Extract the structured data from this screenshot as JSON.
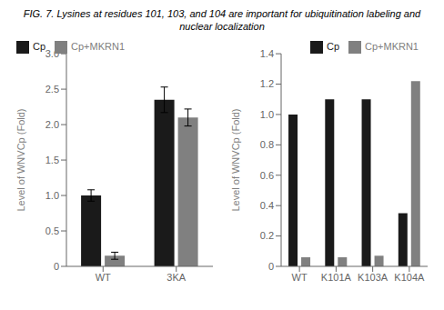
{
  "title": "FIG. 7. Lysines at residues 101, 103, and 104 are important for ubiquitination labeling and nuclear localization",
  "chart_data": [
    {
      "type": "bar",
      "categories": [
        "WT",
        "3KA"
      ],
      "series": [
        {
          "name": "Cp",
          "color": "#1a1a1a",
          "values": [
            1.0,
            2.35
          ],
          "errors": [
            0.08,
            0.18
          ]
        },
        {
          "name": "Cp+MKRN1",
          "color": "#808080",
          "values": [
            0.15,
            2.1
          ],
          "errors": [
            0.05,
            0.12
          ]
        }
      ],
      "y_label": "Level of WNVCp (Fold)",
      "ylim": [
        0,
        3.0
      ],
      "yticks": [
        0,
        0.5,
        {
          "value": 1.0,
          "label": "1.0"
        },
        1.5,
        {
          "value": 2.0,
          "label": "2.0"
        },
        2.5,
        {
          "value": 3.0,
          "label": "3.0"
        }
      ],
      "legend": "upper left",
      "grid": false
    },
    {
      "type": "bar",
      "categories": [
        "WT",
        "K101A",
        "K103A",
        "K104A"
      ],
      "series": [
        {
          "name": "Cp",
          "color": "#1a1a1a",
          "values": [
            1.0,
            1.1,
            1.1,
            0.35
          ]
        },
        {
          "name": "Cp+MKRN1",
          "color": "#808080",
          "values": [
            0.06,
            0.06,
            0.07,
            1.22
          ]
        }
      ],
      "y_label": "Level of WNVCp (Fold)",
      "ylim": [
        0,
        1.4
      ],
      "yticks": [
        0,
        0.2,
        0.4,
        0.6,
        0.8,
        {
          "value": 1.0,
          "label": "1.0"
        },
        1.2,
        1.4
      ],
      "legend": "upper right",
      "grid": false
    }
  ]
}
